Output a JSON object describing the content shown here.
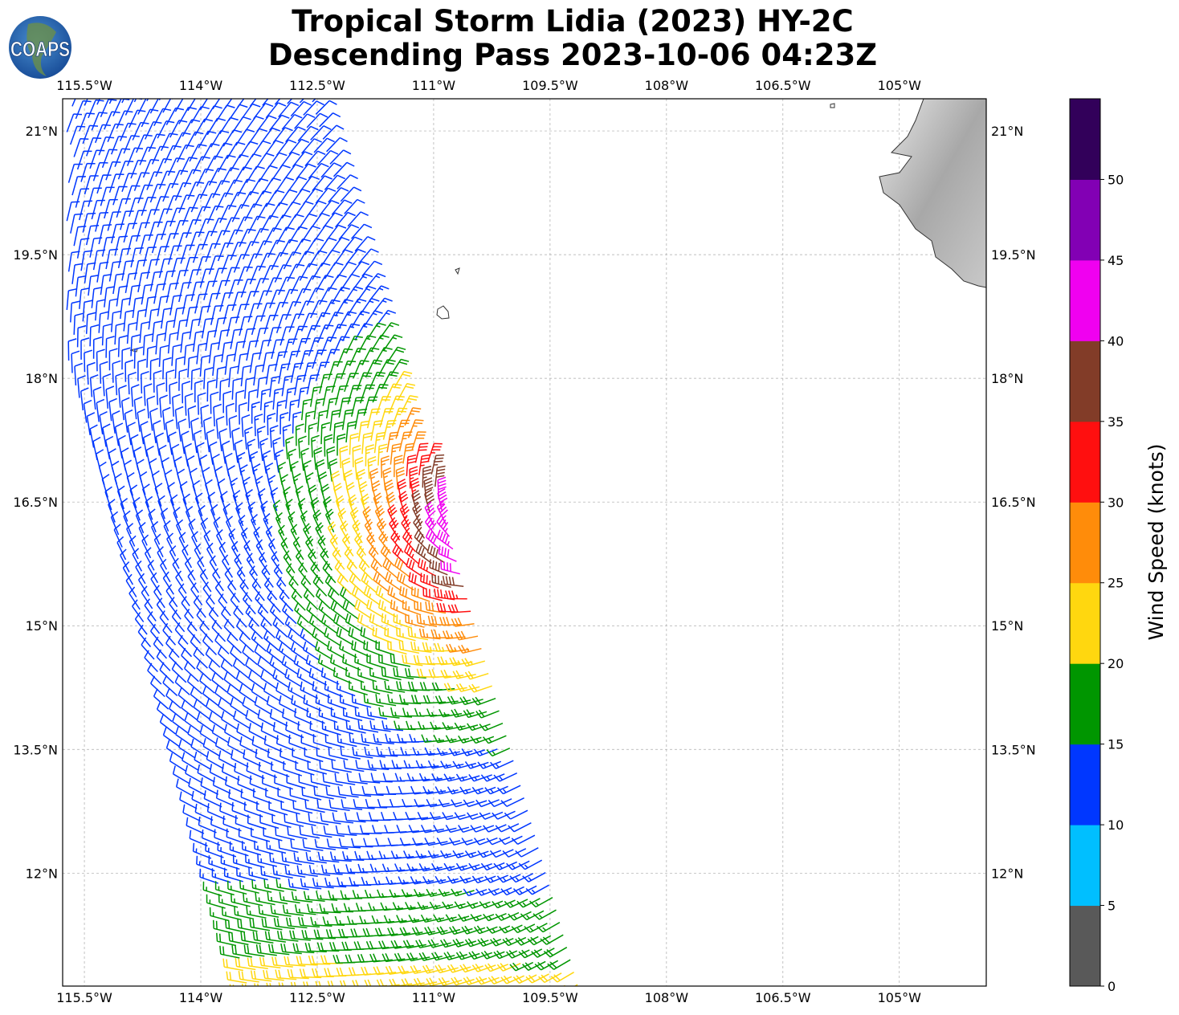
{
  "title_line1": "Tropical Storm Lidia (2023) HY-2C",
  "title_line2": "Descending Pass 2023-10-06 04:23Z",
  "logo_text": "COAPS",
  "map": {
    "lon_range": [
      -115.78,
      -103.88
    ],
    "lat_range": [
      10.63,
      21.39
    ],
    "lon_ticks": [
      {
        "v": -115.5,
        "label": "115.5°W"
      },
      {
        "v": -114,
        "label": "114°W"
      },
      {
        "v": -112.5,
        "label": "112.5°W"
      },
      {
        "v": -111,
        "label": "111°W"
      },
      {
        "v": -109.5,
        "label": "109.5°W"
      },
      {
        "v": -108,
        "label": "108°W"
      },
      {
        "v": -106.5,
        "label": "106.5°W"
      },
      {
        "v": -105,
        "label": "105°W"
      }
    ],
    "lat_ticks": [
      {
        "v": 21,
        "label": "21°N"
      },
      {
        "v": 19.5,
        "label": "19.5°N"
      },
      {
        "v": 18,
        "label": "18°N"
      },
      {
        "v": 16.5,
        "label": "16.5°N"
      },
      {
        "v": 15,
        "label": "15°N"
      },
      {
        "v": 13.5,
        "label": "13.5°N"
      },
      {
        "v": 12,
        "label": "12°N"
      }
    ],
    "storm_center_approx": {
      "lon": -110.2,
      "lat": 16.3
    }
  },
  "colorbar": {
    "label": "Wind Speed (knots)",
    "bounds": [
      0,
      5,
      10,
      15,
      20,
      25,
      30,
      35,
      40,
      45,
      50,
      55
    ],
    "tick_labels": [
      "0",
      "5",
      "10",
      "15",
      "20",
      "25",
      "30",
      "35",
      "40",
      "45",
      "50"
    ],
    "colors": [
      "#595959",
      "#00bfff",
      "#0037ff",
      "#009600",
      "#ffd70f",
      "#ff8c0a",
      "#ff0f0f",
      "#823c28",
      "#f000f0",
      "#8200b4",
      "#32005a"
    ]
  }
}
